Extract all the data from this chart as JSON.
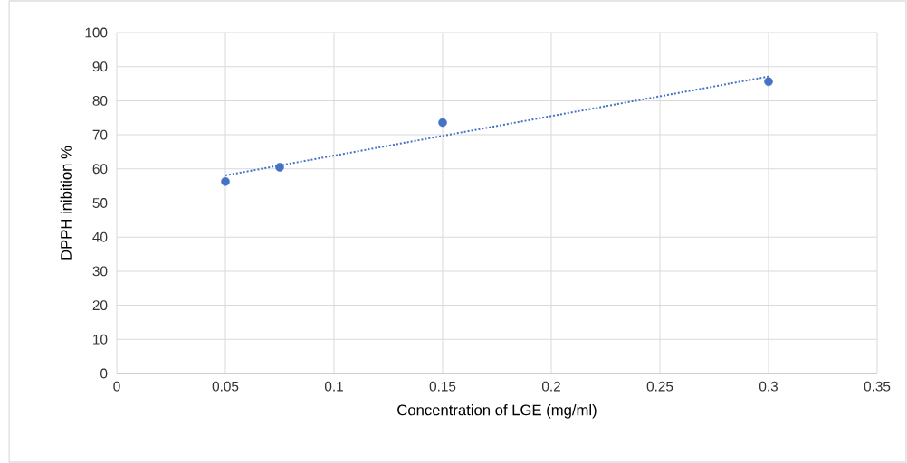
{
  "chart_data": {
    "type": "scatter",
    "xlabel": "Concentration of LGE (mg/ml)",
    "ylabel": "DPPH inibition %",
    "xlim": [
      0,
      0.35
    ],
    "xticks": [
      0,
      0.05,
      0.1,
      0.15,
      0.2,
      0.25,
      0.3,
      0.35
    ],
    "ylim": [
      0,
      100
    ],
    "yticks": [
      0,
      10,
      20,
      30,
      40,
      50,
      60,
      70,
      80,
      90,
      100
    ],
    "grid": true,
    "series": [
      {
        "color": "#4472c4",
        "marker": "circle",
        "x": [
          0.05,
          0.075,
          0.15,
          0.3
        ],
        "values": [
          56.3,
          60.5,
          73.6,
          85.6
        ]
      },
      {
        "type": "line",
        "color": "#4472c4",
        "marker": "none",
        "line_style": "dotted",
        "x": [
          0.05,
          0.3
        ],
        "values": [
          58.1,
          87.1
        ]
      }
    ]
  }
}
